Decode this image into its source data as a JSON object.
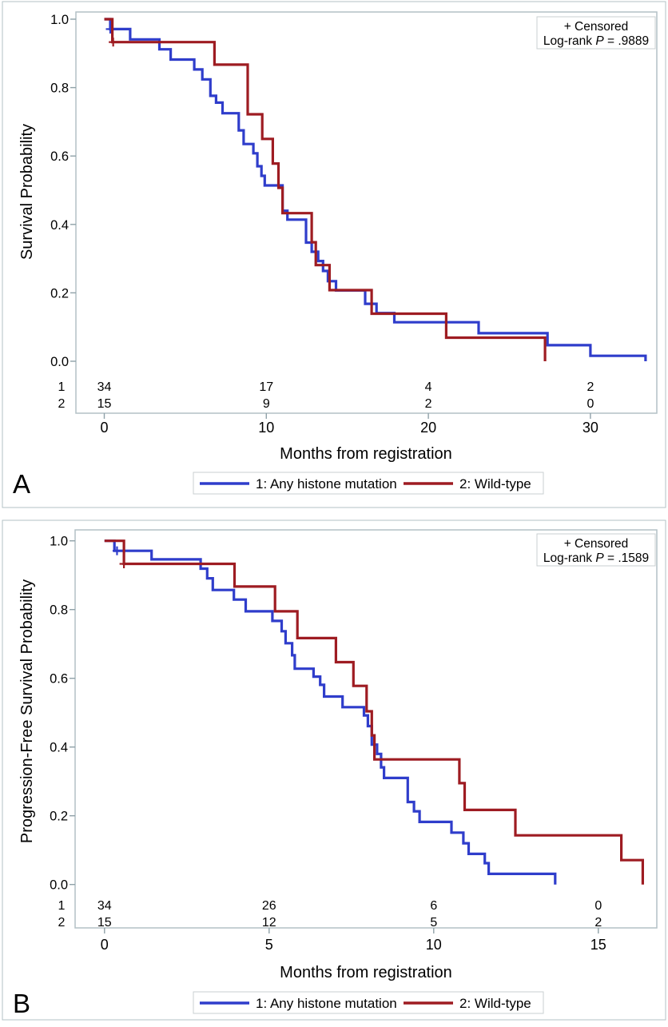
{
  "colors": {
    "group1": "#2f3dcb",
    "group2": "#9e1c22",
    "frame_line": "#b3c1c6",
    "tick_line": "#8fa1a8",
    "box_border": "#c9cfd1",
    "text": "#000000"
  },
  "chart_data": [
    {
      "type": "line",
      "subtype": "kaplan-meier-step",
      "panel_label": "A",
      "ylabel": "Survival Probability",
      "xlabel": "Months from registration",
      "inset": {
        "line1": "+ Censored",
        "line2_parts": [
          "Log-rank ",
          "P",
          " = .9889"
        ]
      },
      "x_ticks": {
        "values": [
          0,
          10,
          20,
          30
        ],
        "labels": [
          "0",
          "10",
          "20",
          "30"
        ]
      },
      "y_ticks": {
        "values": [
          1.0,
          0.8,
          0.6,
          0.4,
          0.2,
          0.0
        ],
        "labels": [
          "1.0",
          "0.8",
          "0.6",
          "0.4",
          "0.2",
          "0.0"
        ]
      },
      "xlim": [
        -1.75,
        34.1
      ],
      "ylim": [
        0,
        1.0
      ],
      "grid": false,
      "legend_position": "bottom",
      "series": [
        {
          "name": "1: Any histone mutation",
          "color_key": "group1",
          "steps": [
            [
              0,
              1.0
            ],
            [
              0.37,
              0.971
            ],
            [
              1.6,
              0.941
            ],
            [
              3.4,
              0.912
            ],
            [
              4.1,
              0.882
            ],
            [
              5.55,
              0.853
            ],
            [
              6.05,
              0.824
            ],
            [
              6.55,
              0.776
            ],
            [
              6.9,
              0.756
            ],
            [
              7.3,
              0.725
            ],
            [
              8.3,
              0.675
            ],
            [
              8.6,
              0.635
            ],
            [
              9.2,
              0.608
            ],
            [
              9.45,
              0.57
            ],
            [
              9.7,
              0.542
            ],
            [
              9.9,
              0.514
            ],
            [
              11.0,
              0.44
            ],
            [
              11.3,
              0.414
            ],
            [
              12.45,
              0.347
            ],
            [
              12.8,
              0.32
            ],
            [
              13.2,
              0.293
            ],
            [
              13.5,
              0.264
            ],
            [
              13.8,
              0.234
            ],
            [
              14.3,
              0.207
            ],
            [
              16.1,
              0.168
            ],
            [
              16.8,
              0.141
            ],
            [
              17.9,
              0.114
            ],
            [
              23.1,
              0.082
            ],
            [
              27.35,
              0.047
            ],
            [
              30.0,
              0.016
            ],
            [
              33.4,
              0.0
            ]
          ],
          "censors": [
            [
              0.37,
              0.971
            ]
          ]
        },
        {
          "name": "2: Wild-type",
          "color_key": "group2",
          "steps": [
            [
              0,
              1.0
            ],
            [
              0.5,
              0.933
            ],
            [
              6.8,
              0.867
            ],
            [
              8.85,
              0.722
            ],
            [
              9.75,
              0.65
            ],
            [
              10.4,
              0.578
            ],
            [
              10.75,
              0.507
            ],
            [
              11.0,
              0.433
            ],
            [
              12.8,
              0.348
            ],
            [
              13.05,
              0.281
            ],
            [
              13.9,
              0.208
            ],
            [
              16.5,
              0.139
            ],
            [
              21.1,
              0.069
            ],
            [
              27.2,
              0.0
            ]
          ],
          "censors": [
            [
              0.55,
              0.933
            ]
          ]
        }
      ],
      "at_risk": {
        "row_labels": [
          "1",
          "2"
        ],
        "row_color_keys": [
          "group1",
          "group2"
        ],
        "times": [
          0,
          10,
          20,
          30
        ],
        "counts": [
          [
            34,
            17,
            4,
            2
          ],
          [
            15,
            9,
            2,
            0
          ]
        ]
      },
      "legend": [
        {
          "label": "1: Any histone mutation",
          "color_key": "group1"
        },
        {
          "label": "2: Wild-type",
          "color_key": "group2"
        }
      ]
    },
    {
      "type": "line",
      "subtype": "kaplan-meier-step",
      "panel_label": "B",
      "ylabel": "Progression-Free Survival Probability",
      "xlabel": "Months from registration",
      "inset": {
        "line1": "+ Censored",
        "line2_parts": [
          "Log-rank ",
          "P",
          " = .1589"
        ]
      },
      "x_ticks": {
        "values": [
          0,
          5,
          10,
          15
        ],
        "labels": [
          "0",
          "5",
          "10",
          "15"
        ]
      },
      "y_ticks": {
        "values": [
          1.0,
          0.8,
          0.6,
          0.4,
          0.2,
          0.0
        ],
        "labels": [
          "1.0",
          "0.8",
          "0.6",
          "0.4",
          "0.2",
          "0.0"
        ]
      },
      "xlim": [
        -0.9,
        16.8
      ],
      "ylim": [
        0,
        1.0
      ],
      "grid": false,
      "legend_position": "bottom",
      "series": [
        {
          "name": "1: Any histone mutation",
          "color_key": "group1",
          "steps": [
            [
              0,
              1.0
            ],
            [
              0.3,
              0.971
            ],
            [
              1.43,
              0.946
            ],
            [
              2.92,
              0.919
            ],
            [
              3.12,
              0.891
            ],
            [
              3.29,
              0.857
            ],
            [
              3.93,
              0.829
            ],
            [
              4.29,
              0.795
            ],
            [
              5.1,
              0.767
            ],
            [
              5.38,
              0.737
            ],
            [
              5.5,
              0.702
            ],
            [
              5.7,
              0.667
            ],
            [
              5.78,
              0.628
            ],
            [
              6.35,
              0.605
            ],
            [
              6.55,
              0.581
            ],
            [
              6.67,
              0.547
            ],
            [
              7.23,
              0.516
            ],
            [
              7.88,
              0.492
            ],
            [
              8.0,
              0.461
            ],
            [
              8.12,
              0.407
            ],
            [
              8.28,
              0.38
            ],
            [
              8.4,
              0.341
            ],
            [
              8.49,
              0.31
            ],
            [
              9.21,
              0.24
            ],
            [
              9.4,
              0.213
            ],
            [
              9.57,
              0.182
            ],
            [
              10.54,
              0.151
            ],
            [
              10.9,
              0.12
            ],
            [
              11.06,
              0.089
            ],
            [
              11.55,
              0.062
            ],
            [
              11.67,
              0.031
            ],
            [
              13.69,
              0.0
            ]
          ],
          "censors": [
            [
              0.38,
              0.971
            ]
          ]
        },
        {
          "name": "2: Wild-type",
          "color_key": "group2",
          "steps": [
            [
              0,
              1.0
            ],
            [
              0.59,
              0.933
            ],
            [
              3.95,
              0.867
            ],
            [
              5.18,
              0.795
            ],
            [
              5.86,
              0.717
            ],
            [
              7.03,
              0.647
            ],
            [
              7.56,
              0.578
            ],
            [
              7.96,
              0.504
            ],
            [
              8.12,
              0.434
            ],
            [
              8.2,
              0.364
            ],
            [
              10.78,
              0.295
            ],
            [
              10.94,
              0.217
            ],
            [
              12.48,
              0.143
            ],
            [
              15.7,
              0.071
            ],
            [
              16.35,
              0.0
            ]
          ],
          "censors": [
            [
              0.59,
              0.933
            ]
          ]
        }
      ],
      "at_risk": {
        "row_labels": [
          "1",
          "2"
        ],
        "row_color_keys": [
          "group1",
          "group2"
        ],
        "times": [
          0,
          5,
          10,
          15
        ],
        "counts": [
          [
            34,
            26,
            6,
            0
          ],
          [
            15,
            12,
            5,
            2
          ]
        ]
      },
      "legend": [
        {
          "label": "1: Any histone mutation",
          "color_key": "group1"
        },
        {
          "label": "2: Wild-type",
          "color_key": "group2"
        }
      ]
    }
  ]
}
